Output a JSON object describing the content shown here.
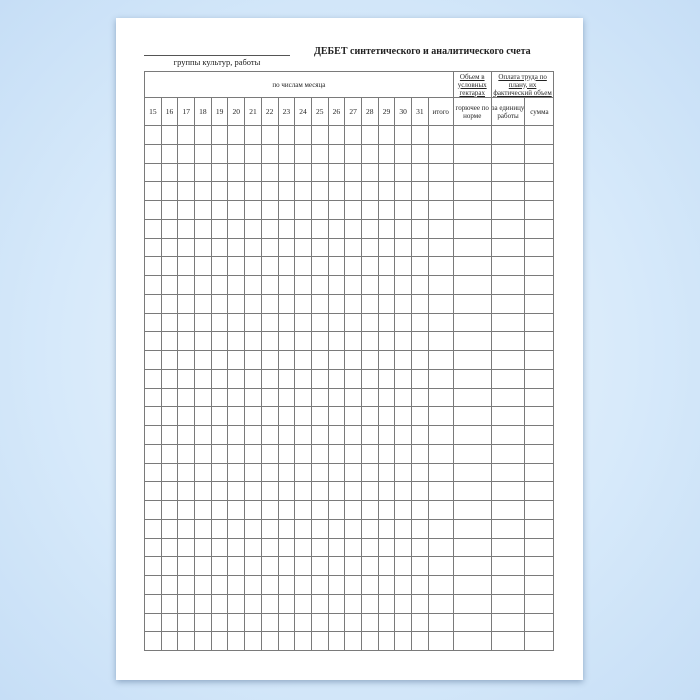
{
  "form": {
    "signature_label": "группы культур, работы",
    "title": "ДЕБЕТ синтетического и аналитического счета",
    "header": {
      "days_group": "по числам месяца",
      "days": [
        "15",
        "16",
        "17",
        "18",
        "19",
        "20",
        "21",
        "22",
        "23",
        "24",
        "25",
        "26",
        "27",
        "28",
        "29",
        "30",
        "31"
      ],
      "total": "итого",
      "volume_group": "Объем в условных гектарах",
      "fuel": "горючее по норме",
      "pay_group": "Оплата труда по плану, их фактический объем",
      "per_unit": "за единицу работы",
      "sum": "сумма"
    },
    "body_rows": 28
  }
}
